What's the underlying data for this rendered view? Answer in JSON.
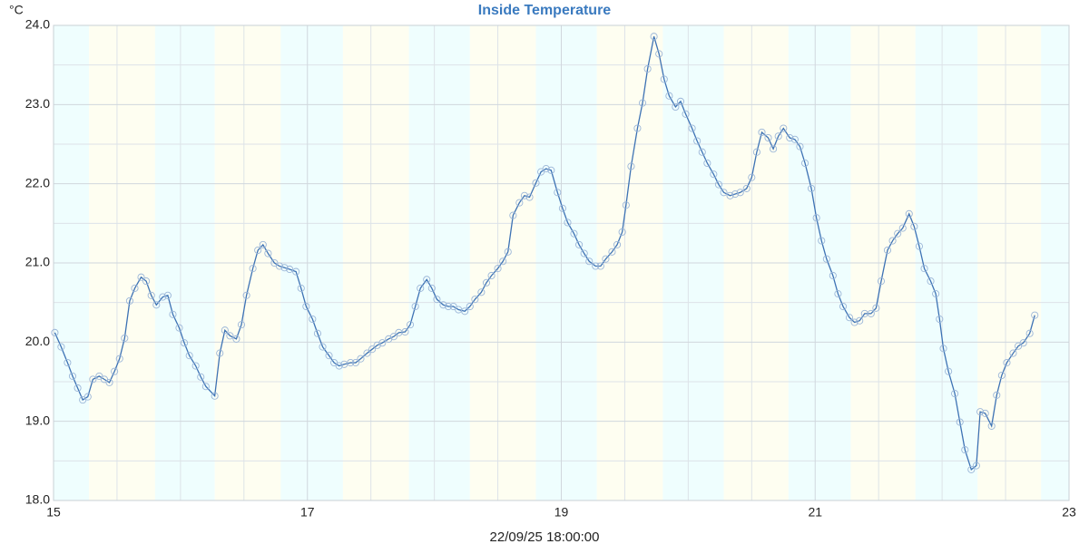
{
  "chart_data": {
    "type": "line",
    "title": "Inside Temperature",
    "y_label": "°C",
    "x_label": "22/09/25 18:00:00",
    "xlim": [
      15,
      23
    ],
    "xticks": [
      15,
      17,
      19,
      21,
      23
    ],
    "xminor_ticks": [
      15.5,
      16,
      16.5,
      17.5,
      18,
      18.5,
      19.5,
      20,
      20.5,
      21.5,
      22,
      22.5
    ],
    "ylim": [
      18,
      24
    ],
    "yticks": [
      {
        "value": 18,
        "label": "18.0"
      },
      {
        "value": 19,
        "label": "19.0"
      },
      {
        "value": 20,
        "label": "20.0"
      },
      {
        "value": 21,
        "label": "21.0"
      },
      {
        "value": 22,
        "label": "22.0"
      },
      {
        "value": 23,
        "label": "23.0"
      },
      {
        "value": 24,
        "label": "24.0"
      }
    ],
    "yminor_ticks": [
      18.5,
      19.5,
      20.5,
      21.5,
      22.5,
      23.5
    ],
    "grid": true,
    "bands": [
      {
        "start": 15,
        "end": 15.28,
        "color": "#effefe"
      },
      {
        "start": 15.28,
        "end": 15.8,
        "color": "#fefef1"
      },
      {
        "start": 15.8,
        "end": 16.27,
        "color": "#effefe"
      },
      {
        "start": 16.27,
        "end": 16.79,
        "color": "#fefef1"
      },
      {
        "start": 16.79,
        "end": 17.28,
        "color": "#effefe"
      },
      {
        "start": 17.28,
        "end": 17.8,
        "color": "#fefef1"
      },
      {
        "start": 17.8,
        "end": 18.28,
        "color": "#effefe"
      },
      {
        "start": 18.28,
        "end": 18.8,
        "color": "#fefef1"
      },
      {
        "start": 18.8,
        "end": 19.28,
        "color": "#effefe"
      },
      {
        "start": 19.28,
        "end": 19.8,
        "color": "#fefef1"
      },
      {
        "start": 19.8,
        "end": 20.28,
        "color": "#effefe"
      },
      {
        "start": 20.28,
        "end": 20.79,
        "color": "#fefef1"
      },
      {
        "start": 20.79,
        "end": 21.28,
        "color": "#effefe"
      },
      {
        "start": 21.28,
        "end": 21.79,
        "color": "#fefef1"
      },
      {
        "start": 21.79,
        "end": 22.28,
        "color": "#effefe"
      },
      {
        "start": 22.28,
        "end": 22.78,
        "color": "#fefef1"
      },
      {
        "start": 22.78,
        "end": 23,
        "color": "#effefe"
      }
    ],
    "x": [
      15.01,
      15.06,
      15.11,
      15.15,
      15.19,
      15.23,
      15.27,
      15.31,
      15.36,
      15.4,
      15.44,
      15.48,
      15.52,
      15.56,
      15.6,
      15.64,
      15.69,
      15.73,
      15.77,
      15.81,
      15.86,
      15.9,
      15.94,
      15.99,
      16.03,
      16.07,
      16.12,
      16.16,
      16.2,
      16.27,
      16.31,
      16.35,
      16.39,
      16.44,
      16.48,
      16.52,
      16.57,
      16.61,
      16.65,
      16.69,
      16.74,
      16.78,
      16.82,
      16.86,
      16.91,
      16.95,
      16.99,
      17.04,
      17.08,
      17.12,
      17.17,
      17.21,
      17.25,
      17.29,
      17.34,
      17.38,
      17.42,
      17.47,
      17.51,
      17.55,
      17.59,
      17.64,
      17.68,
      17.72,
      17.77,
      17.81,
      17.85,
      17.89,
      17.94,
      17.98,
      18.02,
      18.07,
      18.11,
      18.15,
      18.19,
      18.24,
      18.28,
      18.32,
      18.37,
      18.41,
      18.45,
      18.5,
      18.54,
      18.58,
      18.62,
      18.67,
      18.71,
      18.75,
      18.8,
      18.84,
      18.88,
      18.92,
      18.97,
      19.01,
      19.05,
      19.1,
      19.14,
      19.18,
      19.22,
      19.27,
      19.31,
      19.35,
      19.4,
      19.44,
      19.48,
      19.51,
      19.55,
      19.6,
      19.64,
      19.68,
      19.73,
      19.77,
      19.81,
      19.85,
      19.9,
      19.94,
      19.98,
      20.03,
      20.07,
      20.11,
      20.15,
      20.2,
      20.24,
      20.28,
      20.33,
      20.37,
      20.41,
      20.46,
      20.5,
      20.54,
      20.58,
      20.63,
      20.67,
      20.71,
      20.75,
      20.8,
      20.84,
      20.88,
      20.92,
      20.97,
      21.01,
      21.05,
      21.09,
      21.14,
      21.18,
      21.22,
      21.27,
      21.31,
      21.35,
      21.39,
      21.44,
      21.48,
      21.52,
      21.57,
      21.61,
      21.65,
      21.69,
      21.74,
      21.78,
      21.82,
      21.86,
      21.91,
      21.95,
      21.98,
      22.01,
      22.05,
      22.1,
      22.14,
      22.18,
      22.23,
      22.27,
      22.3,
      22.34,
      22.39,
      22.43,
      22.47,
      22.51,
      22.56,
      22.6,
      22.64,
      22.69,
      22.73
    ],
    "series": [
      {
        "color": "#3d72b4",
        "values": [
          20.12,
          19.94,
          19.74,
          19.57,
          19.42,
          19.27,
          19.31,
          19.53,
          19.57,
          19.53,
          19.49,
          19.63,
          19.79,
          20.05,
          20.52,
          20.68,
          20.82,
          20.77,
          20.59,
          20.47,
          20.57,
          20.59,
          20.35,
          20.18,
          19.99,
          19.83,
          19.7,
          19.56,
          19.44,
          19.32,
          19.86,
          20.15,
          20.08,
          20.04,
          20.22,
          20.59,
          20.93,
          21.16,
          21.23,
          21.12,
          21.0,
          20.96,
          20.94,
          20.92,
          20.89,
          20.68,
          20.45,
          20.29,
          20.11,
          19.94,
          19.83,
          19.74,
          19.7,
          19.72,
          19.74,
          19.74,
          19.79,
          19.86,
          19.91,
          19.96,
          19.99,
          20.04,
          20.07,
          20.12,
          20.13,
          20.22,
          20.45,
          20.68,
          20.79,
          20.68,
          20.54,
          20.47,
          20.45,
          20.45,
          20.41,
          20.39,
          20.45,
          20.54,
          20.63,
          20.75,
          20.84,
          20.93,
          21.02,
          21.14,
          21.6,
          21.76,
          21.85,
          21.83,
          22.01,
          22.15,
          22.19,
          22.17,
          21.89,
          21.69,
          21.51,
          21.37,
          21.23,
          21.12,
          21.02,
          20.96,
          20.96,
          21.05,
          21.14,
          21.23,
          21.39,
          21.73,
          22.22,
          22.7,
          23.02,
          23.45,
          23.86,
          23.64,
          23.32,
          23.11,
          22.97,
          23.04,
          22.88,
          22.7,
          22.54,
          22.4,
          22.26,
          22.12,
          21.99,
          21.89,
          21.85,
          21.87,
          21.89,
          21.94,
          22.08,
          22.4,
          22.65,
          22.58,
          22.44,
          22.6,
          22.7,
          22.58,
          22.56,
          22.47,
          22.26,
          21.94,
          21.57,
          21.28,
          21.05,
          20.84,
          20.61,
          20.45,
          20.31,
          20.25,
          20.27,
          20.36,
          20.36,
          20.43,
          20.77,
          21.16,
          21.28,
          21.37,
          21.44,
          21.62,
          21.46,
          21.21,
          20.93,
          20.77,
          20.61,
          20.29,
          19.92,
          19.63,
          19.35,
          18.99,
          18.64,
          18.39,
          18.44,
          19.12,
          19.1,
          18.94,
          19.33,
          19.58,
          19.74,
          19.86,
          19.95,
          19.99,
          20.11,
          20.34
        ]
      }
    ]
  }
}
